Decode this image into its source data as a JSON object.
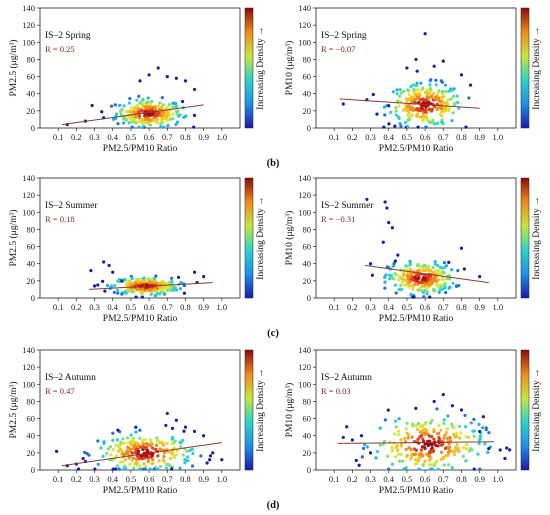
{
  "figure": {
    "subfigure_labels": [
      "(b)",
      "(c)",
      "(d)"
    ],
    "colorbar_label": "Increasing Density →"
  },
  "chart_data": [
    {
      "type": "scatter",
      "season": "IS–2 Spring",
      "r_text": "R = 0.25",
      "ylabel": "PM2.5 (μg/m³)",
      "xlabel": "PM2.5/PM10 Ratio",
      "xlim": [
        0,
        1.1
      ],
      "ylim": [
        0,
        140
      ],
      "xticks": [
        "0.1",
        "0.2",
        "0.3",
        "0.4",
        "0.5",
        "0.6",
        "0.7",
        "0.8",
        "0.9",
        "1.0"
      ],
      "yticks": [
        "0",
        "20",
        "40",
        "60",
        "80",
        "100",
        "120",
        "140"
      ],
      "trend": {
        "x0": 0.12,
        "y0": 4,
        "x1": 0.9,
        "y1": 27
      },
      "cluster": {
        "cx": 0.6,
        "cy": 17,
        "sx": 0.09,
        "sy": 8
      },
      "outliers": [
        [
          0.15,
          4
        ],
        [
          0.25,
          8
        ],
        [
          0.35,
          12
        ],
        [
          0.65,
          70
        ],
        [
          0.7,
          60
        ],
        [
          0.75,
          58
        ],
        [
          0.8,
          55
        ],
        [
          0.85,
          45
        ],
        [
          0.55,
          55
        ],
        [
          0.6,
          62
        ]
      ]
    },
    {
      "type": "scatter",
      "season": "IS–2 Spring",
      "r_text": "R = −0.07",
      "ylabel": "PM10 (μg/m³)",
      "xlabel": "PM2.5/PM10 Ratio",
      "xlim": [
        0,
        1.1
      ],
      "ylim": [
        0,
        140
      ],
      "xticks": [
        "0.1",
        "0.2",
        "0.3",
        "0.4",
        "0.5",
        "0.6",
        "0.7",
        "0.8",
        "0.9",
        "1.0"
      ],
      "yticks": [
        "0",
        "20",
        "40",
        "60",
        "80",
        "100",
        "120",
        "140"
      ],
      "trend": {
        "x0": 0.13,
        "y0": 34,
        "x1": 0.9,
        "y1": 23
      },
      "cluster": {
        "cx": 0.6,
        "cy": 27,
        "sx": 0.1,
        "sy": 12
      },
      "outliers": [
        [
          0.15,
          28
        ],
        [
          0.28,
          33
        ],
        [
          0.6,
          110
        ],
        [
          0.55,
          80
        ],
        [
          0.7,
          78
        ],
        [
          0.65,
          72
        ],
        [
          0.5,
          70
        ],
        [
          0.8,
          62
        ],
        [
          0.85,
          50
        ],
        [
          0.4,
          26
        ]
      ]
    },
    {
      "type": "scatter",
      "season": "IS–2 Summer",
      "r_text": "R = 0.18",
      "ylabel": "PM2.5 (μg/m³)",
      "xlabel": "PM2.5/PM10 Ratio",
      "xlim": [
        0,
        1.1
      ],
      "ylim": [
        0,
        140
      ],
      "xticks": [
        "0.1",
        "0.2",
        "0.3",
        "0.4",
        "0.5",
        "0.6",
        "0.7",
        "0.8",
        "0.9",
        "1.0"
      ],
      "yticks": [
        "0",
        "20",
        "40",
        "60",
        "80",
        "100",
        "120",
        "140"
      ],
      "trend": {
        "x0": 0.27,
        "y0": 10,
        "x1": 0.95,
        "y1": 18
      },
      "cluster": {
        "cx": 0.58,
        "cy": 14,
        "sx": 0.09,
        "sy": 5
      },
      "outliers": [
        [
          0.28,
          32
        ],
        [
          0.35,
          42
        ],
        [
          0.38,
          38
        ],
        [
          0.4,
          30
        ],
        [
          0.45,
          20
        ],
        [
          0.85,
          30
        ],
        [
          0.9,
          25
        ],
        [
          0.3,
          14
        ]
      ]
    },
    {
      "type": "scatter",
      "season": "IS–2 Summer",
      "r_text": "R = −0.31",
      "ylabel": "PM10 (μg/m³)",
      "xlabel": "PM2.5/PM10 Ratio",
      "xlim": [
        0,
        1.1
      ],
      "ylim": [
        0,
        140
      ],
      "xticks": [
        "0.1",
        "0.2",
        "0.3",
        "0.4",
        "0.5",
        "0.6",
        "0.7",
        "0.8",
        "0.9",
        "1.0"
      ],
      "yticks": [
        "0",
        "20",
        "40",
        "60",
        "80",
        "100",
        "120",
        "140"
      ],
      "trend": {
        "x0": 0.27,
        "y0": 38,
        "x1": 0.95,
        "y1": 18
      },
      "cluster": {
        "cx": 0.58,
        "cy": 23,
        "sx": 0.09,
        "sy": 9
      },
      "outliers": [
        [
          0.28,
          115
        ],
        [
          0.38,
          112
        ],
        [
          0.39,
          105
        ],
        [
          0.4,
          88
        ],
        [
          0.37,
          65
        ],
        [
          0.42,
          82
        ],
        [
          0.45,
          50
        ],
        [
          0.3,
          40
        ],
        [
          0.8,
          58
        ],
        [
          0.9,
          25
        ]
      ]
    },
    {
      "type": "scatter",
      "season": "IS–2 Autumn",
      "r_text": "R = 0.47",
      "ylabel": "PM2.5 (μg/m³)",
      "xlabel": "PM2.5/PM10 Ratio",
      "xlim": [
        0,
        1.1
      ],
      "ylim": [
        0,
        140
      ],
      "xticks": [
        "0.1",
        "0.2",
        "0.3",
        "0.4",
        "0.5",
        "0.6",
        "0.7",
        "0.8",
        "0.9",
        "1.0"
      ],
      "yticks": [
        "0",
        "20",
        "40",
        "60",
        "80",
        "100",
        "120",
        "140"
      ],
      "trend": {
        "x0": 0.12,
        "y0": 5,
        "x1": 1.0,
        "y1": 32
      },
      "cluster": {
        "cx": 0.58,
        "cy": 20,
        "sx": 0.13,
        "sy": 11
      },
      "outliers": [
        [
          0.15,
          5
        ],
        [
          0.2,
          7
        ],
        [
          0.25,
          10
        ],
        [
          0.7,
          66
        ],
        [
          0.75,
          58
        ],
        [
          0.8,
          50
        ],
        [
          0.85,
          45
        ],
        [
          0.9,
          40
        ],
        [
          0.95,
          20
        ],
        [
          1.0,
          12
        ]
      ]
    },
    {
      "type": "scatter",
      "season": "IS–2 Autumn",
      "r_text": "R = 0.03",
      "ylabel": "PM10 (μg/m³)",
      "xlabel": "PM2.5/PM10 Ratio",
      "xlim": [
        0,
        1.1
      ],
      "ylim": [
        0,
        140
      ],
      "xticks": [
        "0.1",
        "0.2",
        "0.3",
        "0.4",
        "0.5",
        "0.6",
        "0.7",
        "0.8",
        "0.9",
        "1.0"
      ],
      "yticks": [
        "0",
        "20",
        "40",
        "60",
        "80",
        "100",
        "120",
        "140"
      ],
      "trend": {
        "x0": 0.12,
        "y0": 31,
        "x1": 0.98,
        "y1": 33
      },
      "cluster": {
        "cx": 0.62,
        "cy": 30,
        "sx": 0.15,
        "sy": 16
      },
      "outliers": [
        [
          0.15,
          38
        ],
        [
          0.2,
          35
        ],
        [
          0.25,
          40
        ],
        [
          0.7,
          88
        ],
        [
          0.65,
          80
        ],
        [
          0.75,
          75
        ],
        [
          0.8,
          70
        ],
        [
          0.9,
          45
        ],
        [
          0.95,
          25
        ],
        [
          0.3,
          20
        ]
      ]
    }
  ]
}
